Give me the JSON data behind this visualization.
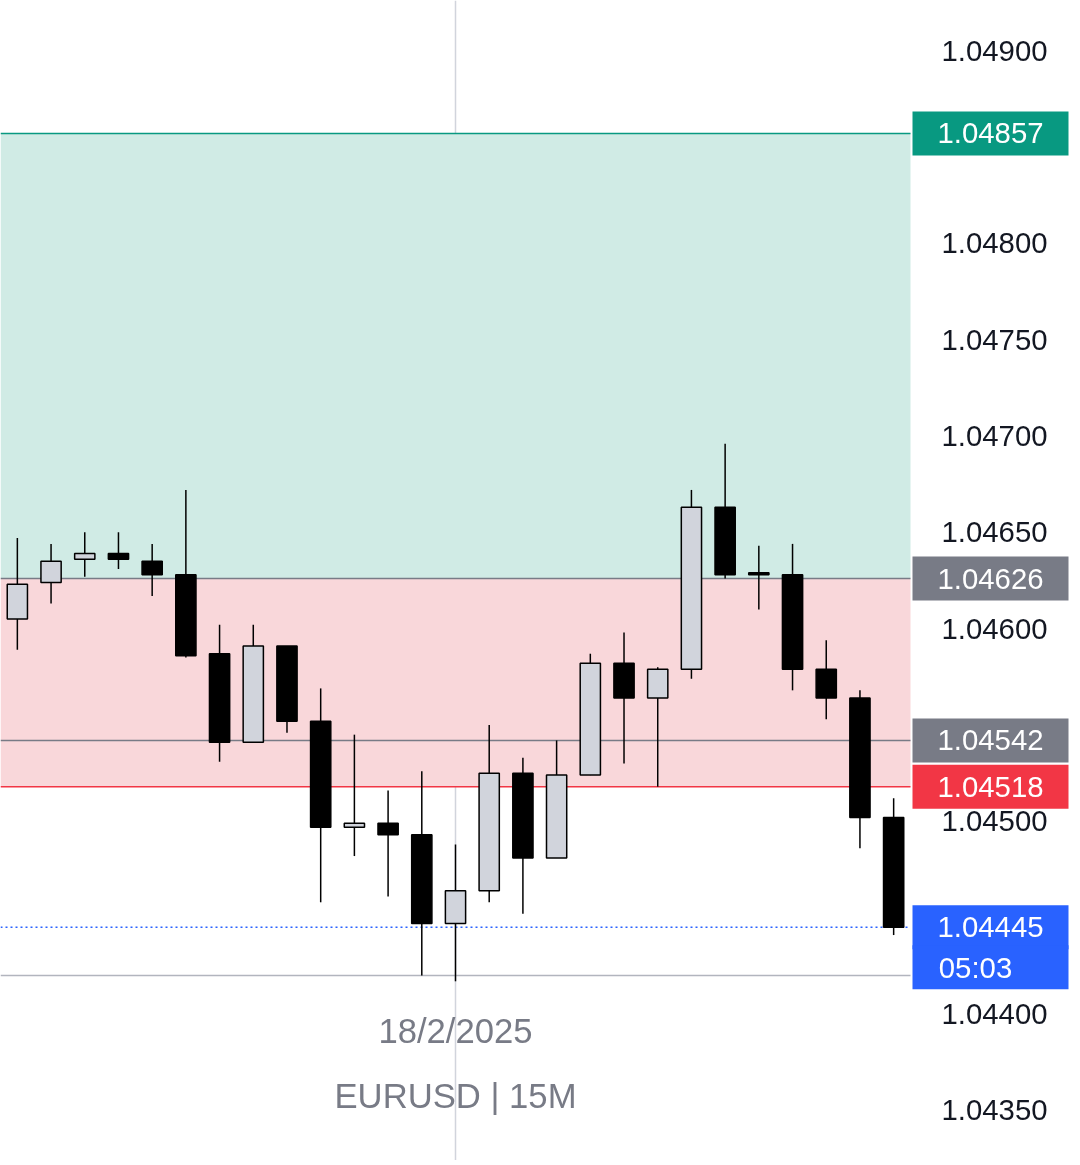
{
  "chart_data": {
    "type": "candlestick",
    "categories": [
      null,
      null,
      null,
      null,
      null,
      null,
      null,
      null,
      null,
      null,
      null,
      null,
      null,
      null,
      null,
      null,
      null,
      null,
      null,
      null,
      null,
      null,
      null,
      null,
      null,
      null,
      null
    ],
    "ohlc": [
      [
        1.04605,
        1.04647,
        1.04589,
        1.04623
      ],
      [
        1.04624,
        1.04644,
        1.04613,
        1.04635
      ],
      [
        1.04636,
        1.0465,
        1.04627,
        1.04639
      ],
      [
        1.04639,
        1.0465,
        1.04631,
        1.04636
      ],
      [
        1.04635,
        1.04644,
        1.04617,
        1.04628
      ],
      [
        1.04628,
        1.04672,
        1.04585,
        1.04586
      ],
      [
        1.04587,
        1.04602,
        1.04531,
        1.04541
      ],
      [
        1.04541,
        1.04602,
        1.04541,
        1.04591
      ],
      [
        1.04591,
        1.04591,
        1.04546,
        1.04552
      ],
      [
        1.04552,
        1.04569,
        1.04458,
        1.04497
      ],
      [
        1.04497,
        1.04545,
        1.04482,
        1.04499
      ],
      [
        1.04499,
        1.04516,
        1.04461,
        1.04493
      ],
      [
        1.04493,
        1.04526,
        1.0442,
        1.04447
      ],
      [
        1.04447,
        1.04488,
        1.04417,
        1.04464
      ],
      [
        1.04464,
        1.0455,
        1.04458,
        1.04525
      ],
      [
        1.04525,
        1.04533,
        1.04452,
        1.04481
      ],
      [
        1.04481,
        1.04542,
        1.04481,
        1.04524
      ],
      [
        1.04524,
        1.04587,
        1.04524,
        1.04582
      ],
      [
        1.04582,
        1.04598,
        1.0453,
        1.04564
      ],
      [
        1.04564,
        1.0458,
        1.04518,
        1.04579
      ],
      [
        1.04579,
        1.04672,
        1.04574,
        1.04663
      ],
      [
        1.04663,
        1.04696,
        1.04626,
        1.04628
      ],
      [
        1.04629,
        1.04643,
        1.0461,
        1.04628
      ],
      [
        1.04628,
        1.04644,
        1.04568,
        1.04579
      ],
      [
        1.04579,
        1.04594,
        1.04553,
        1.04564
      ],
      [
        1.04564,
        1.04568,
        1.04486,
        1.04502
      ],
      [
        1.04502,
        1.04512,
        1.04441,
        1.04445
      ]
    ],
    "colors": [
      "#d1d4dc",
      "#d1d4dc",
      "#d1d4dc",
      "#000000",
      "#000000",
      "#000000",
      "#000000",
      "#d1d4dc",
      "#000000",
      "#000000",
      "#d1d4dc",
      "#000000",
      "#000000",
      "#d1d4dc",
      "#d1d4dc",
      "#000000",
      "#d1d4dc",
      "#d1d4dc",
      "#000000",
      "#d1d4dc",
      "#d1d4dc",
      "#000000",
      "#000000",
      "#000000",
      "#000000",
      "#000000",
      "#000000"
    ],
    "ylim": [
      1.04324,
      1.04926
    ],
    "yticks": [
      {
        "value": 1.049,
        "label": "1.04900"
      },
      {
        "value": 1.048,
        "label": "1.04800"
      },
      {
        "value": 1.0475,
        "label": "1.04750"
      },
      {
        "value": 1.047,
        "label": "1.04700"
      },
      {
        "value": 1.0465,
        "label": "1.04650"
      },
      {
        "value": 1.046,
        "label": "1.04600"
      },
      {
        "value": 1.045,
        "label": "1.04500"
      },
      {
        "value": 1.044,
        "label": "1.04400"
      },
      {
        "value": 1.0435,
        "label": "1.04350"
      }
    ],
    "tick_labels": "y",
    "bands": [
      {
        "axis": "y",
        "from": 1.04626,
        "to": 1.04857,
        "label": null,
        "color": "#d0ebe5"
      },
      {
        "axis": "y",
        "from": 1.04518,
        "to": 1.04626,
        "label": null,
        "color": "#f9d7da"
      }
    ],
    "ref_lines": [
      {
        "axis": "y",
        "value": 1.04857,
        "label": "1.04857",
        "color": "#089981"
      },
      {
        "axis": "y",
        "value": 1.04626,
        "label": "1.04626",
        "color": "#787b86"
      },
      {
        "axis": "y",
        "value": 1.04542,
        "label": "1.04542",
        "color": "#787b86"
      },
      {
        "axis": "y",
        "value": 1.04518,
        "label": "1.04518",
        "color": "#f23645"
      },
      {
        "axis": "y",
        "value": 1.04445,
        "label": "1.04445",
        "color": "#2962ff",
        "line_style": "dotted"
      },
      {
        "axis": "y",
        "value": 1.0442,
        "label": null,
        "color": "#b2b5be"
      }
    ],
    "annotations": [
      "05:03",
      "18/2/2025",
      "EURUSD | 15M"
    ]
  }
}
